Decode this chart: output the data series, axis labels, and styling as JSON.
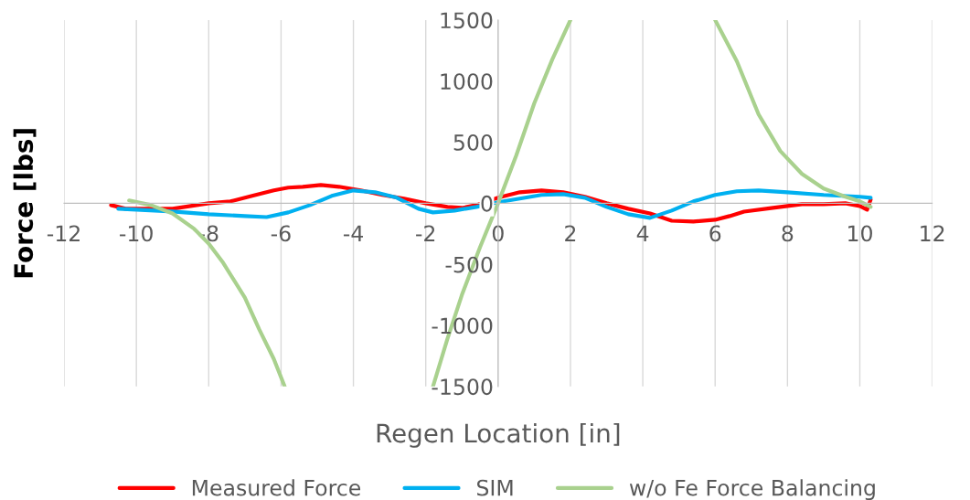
{
  "chart_data": {
    "type": "line",
    "xlabel": "Regen Location [in]",
    "ylabel": "Force [lbs]",
    "xlim": [
      -12,
      12
    ],
    "xticks": [
      -12,
      -10,
      -8,
      -6,
      -4,
      -2,
      0,
      2,
      4,
      6,
      8,
      10,
      12
    ],
    "ylim": [
      -1500,
      1500
    ],
    "yticks": [
      -1500,
      -1000,
      -500,
      0,
      500,
      1000,
      1500
    ],
    "grid": "x",
    "legend": "bottom",
    "line_style": "solid",
    "series": [
      {
        "name": "Measured Force",
        "color": "#ff0000",
        "x": [
          -10.7,
          -10.3,
          -9,
          -8,
          -7.4,
          -6.8,
          -6.2,
          -5.8,
          -5.4,
          -4.9,
          -4.4,
          -3.8,
          -3.2,
          -2.6,
          -2,
          -1.4,
          -1,
          -0.6,
          0,
          0.6,
          1.2,
          1.8,
          2.4,
          3,
          3.6,
          4.2,
          4.8,
          5.4,
          6,
          6.4,
          6.8,
          7.6,
          8.4,
          9,
          9.6,
          10,
          10.2,
          10.3
        ],
        "values": [
          -15,
          -45,
          -45,
          0,
          15,
          60,
          105,
          128,
          135,
          150,
          135,
          105,
          68,
          38,
          0,
          -30,
          -38,
          -15,
          45,
          90,
          105,
          90,
          53,
          0,
          -45,
          -83,
          -143,
          -150,
          -135,
          -105,
          -68,
          -38,
          -8,
          -8,
          0,
          -23,
          -53,
          30
        ]
      },
      {
        "name": "SIM",
        "color": "#00b0f0",
        "x": [
          -10.5,
          -10,
          -9,
          -8,
          -7,
          -6.4,
          -5.8,
          -5.2,
          -4.6,
          -4,
          -3.4,
          -2.8,
          -2.2,
          -1.8,
          -1.2,
          -0.6,
          0,
          0.6,
          1.2,
          1.8,
          2.4,
          3,
          3.6,
          4.2,
          4.8,
          5.4,
          6,
          6.6,
          7.2,
          8,
          9,
          10,
          10.3
        ],
        "values": [
          -45,
          -53,
          -68,
          -90,
          -105,
          -113,
          -75,
          -15,
          60,
          105,
          90,
          45,
          -45,
          -75,
          -60,
          -30,
          8,
          38,
          68,
          75,
          45,
          -30,
          -90,
          -120,
          -60,
          15,
          68,
          98,
          105,
          90,
          68,
          53,
          45
        ]
      },
      {
        "name": "w/o Fe Force Balancing",
        "color": "#a9d18e",
        "x": [
          -10.2,
          -9.6,
          -9,
          -8.4,
          -8,
          -7.6,
          -7,
          -6.6,
          -6.2,
          -5.9,
          -3.8,
          -1.8,
          -1.4,
          -1,
          -0.5,
          0,
          0.5,
          1,
          1.5,
          2,
          4,
          6,
          6.6,
          7.2,
          7.8,
          8.4,
          9,
          9.6,
          10,
          10.3
        ],
        "values": [
          23,
          -15,
          -83,
          -210,
          -330,
          -488,
          -773,
          -1035,
          -1275,
          -1500,
          null,
          -1500,
          -1110,
          -750,
          -360,
          0,
          390,
          818,
          1178,
          1500,
          null,
          1500,
          1163,
          728,
          428,
          240,
          120,
          53,
          15,
          -30
        ]
      }
    ]
  }
}
